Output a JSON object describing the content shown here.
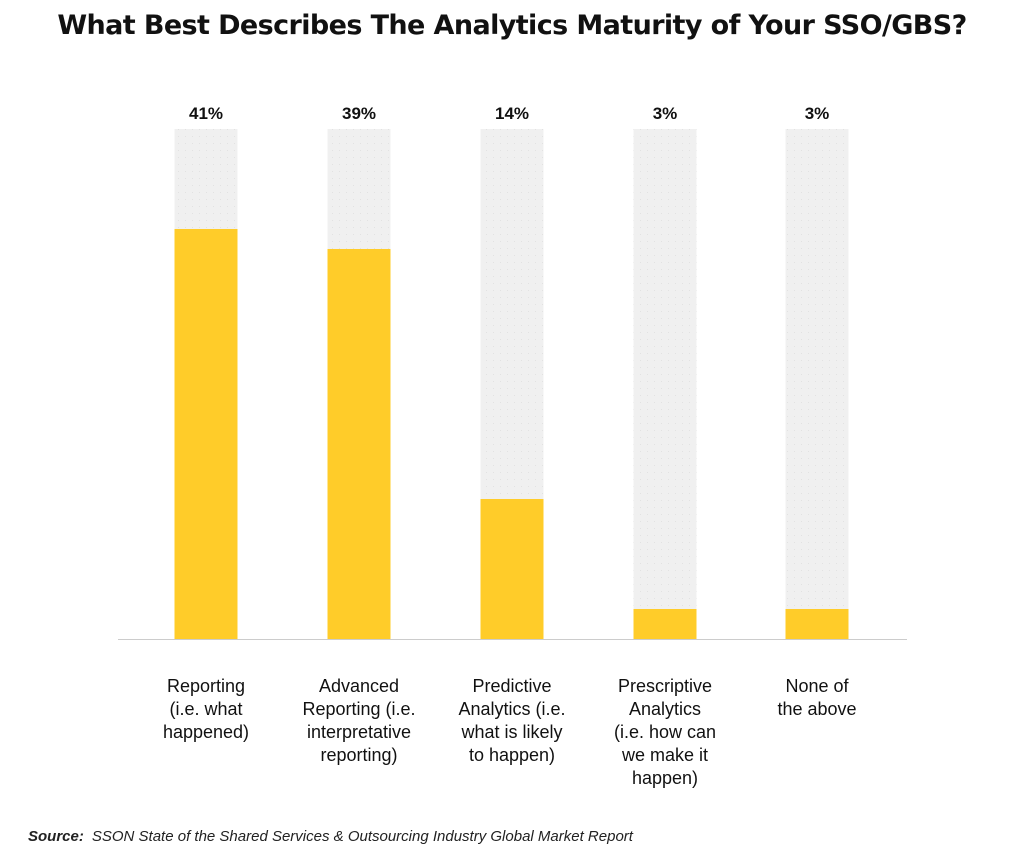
{
  "chart_data": {
    "type": "bar",
    "title": "What Best Describes The Analytics Maturity of Your SSO/GBS?",
    "categories": [
      [
        "Reporting",
        "(i.e. what",
        "happened)"
      ],
      [
        "Advanced",
        "Reporting (i.e.",
        "interpretative",
        "reporting)"
      ],
      [
        "Predictive",
        "Analytics (i.e.",
        "what is likely",
        "to happen)"
      ],
      [
        "Prescriptive",
        "Analytics",
        "(i.e. how can",
        "we make it",
        "happen)"
      ],
      [
        "None of",
        "the above"
      ]
    ],
    "values": [
      41,
      39,
      14,
      3,
      3
    ],
    "value_labels": [
      "41%",
      "39%",
      "14%",
      "3%",
      "3%"
    ],
    "unit": "%",
    "ylim": [
      0,
      51
    ],
    "grid": false,
    "legend": "none",
    "colors": {
      "bar": "#FFCC29",
      "track": "#F0F0F0",
      "track_dots": "#E2E2E2",
      "baseline": "#CCCCCC"
    }
  },
  "source": {
    "key": "Source:",
    "text": "SSON State of the Shared Services & Outsourcing Industry Global Market Report"
  }
}
